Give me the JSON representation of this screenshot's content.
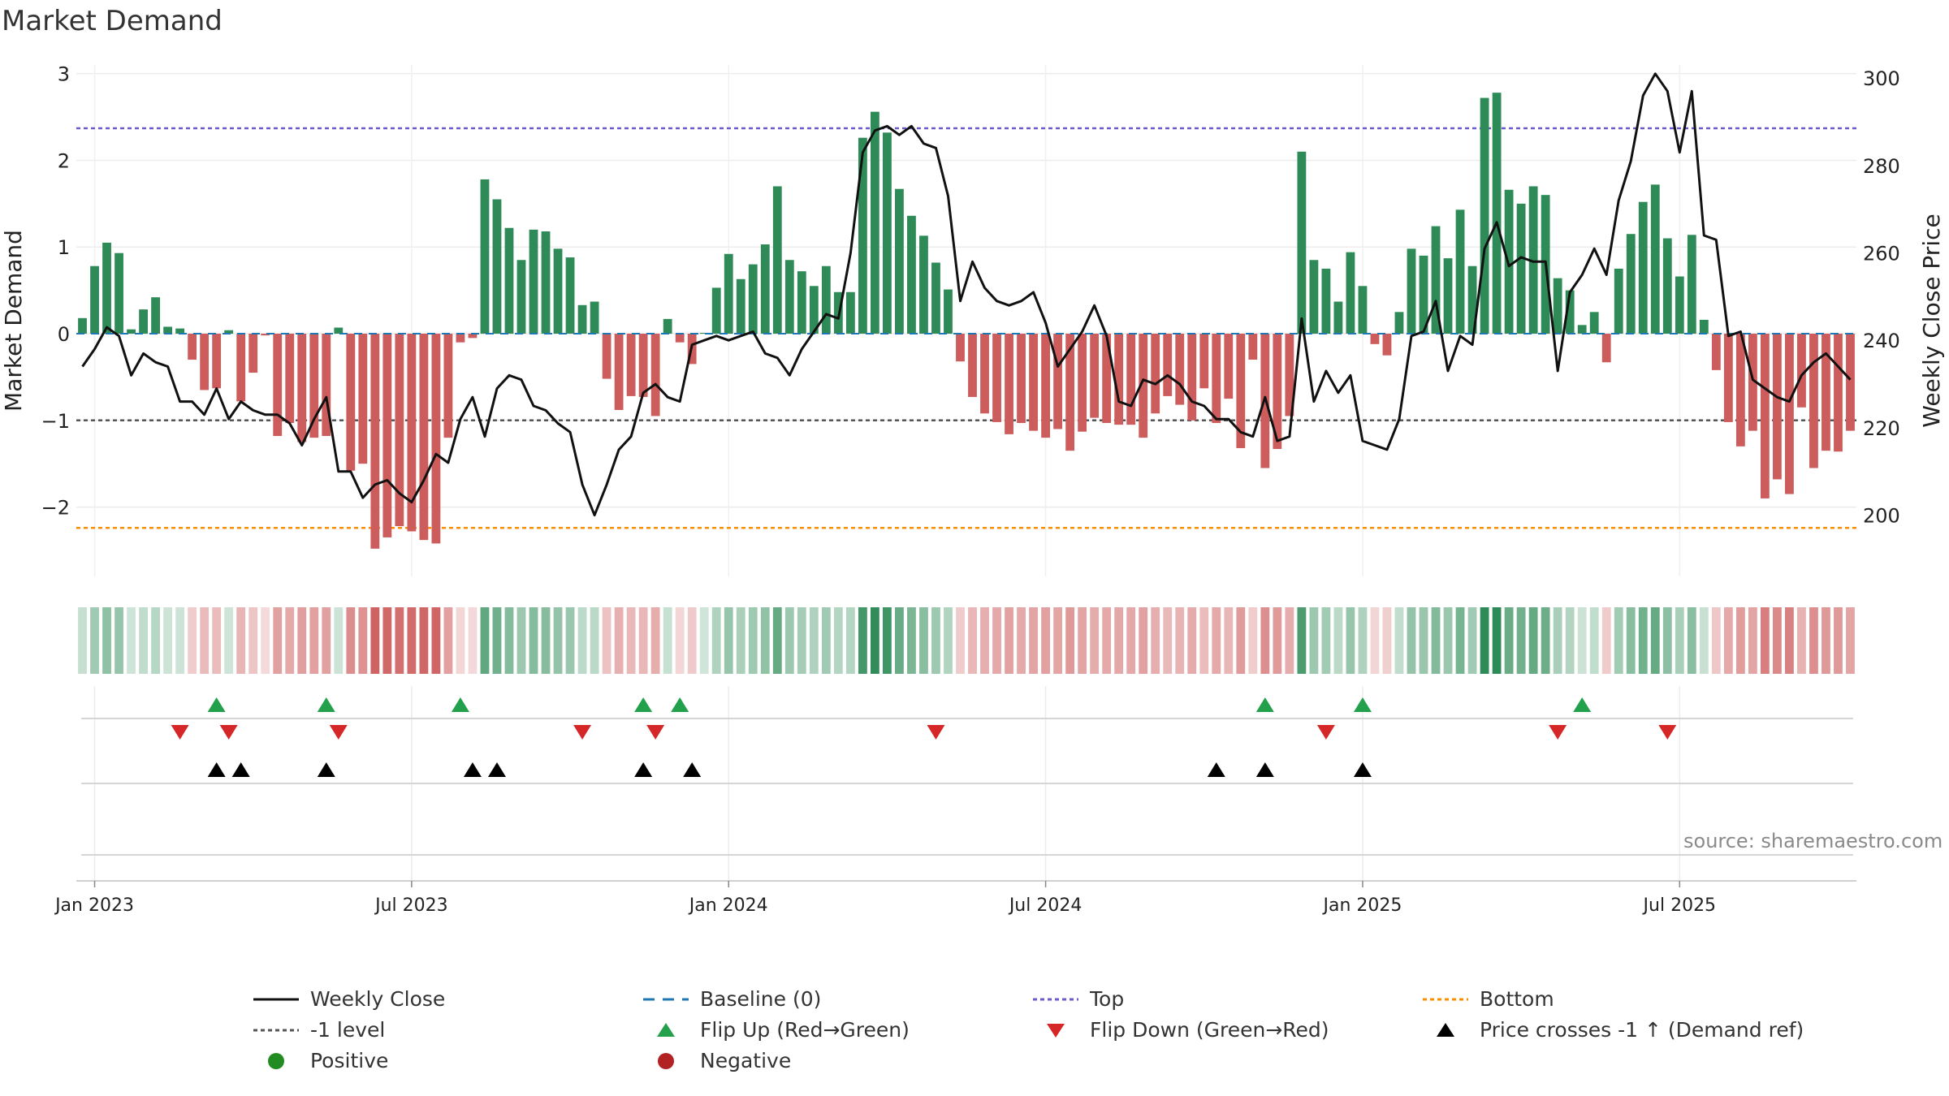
{
  "title": "Market Demand",
  "source": "source: sharemaestro.com",
  "colors": {
    "positive": "#2e8b57",
    "negative": "#cd5c5c",
    "price": "#111111",
    "baseline": "#1f77b4",
    "top": "#6a5acd",
    "level": "#555555",
    "bottom": "#ff8c00",
    "flip_up": "#22a04b",
    "flip_down": "#d62728",
    "cross": "#000000",
    "pos_dot": "#228b22",
    "neg_dot": "#b22222"
  },
  "chart_data": {
    "type": "bar",
    "title": "Market Demand",
    "ylabel": "Market Demand",
    "y2label": "Weekly Close Price",
    "ylim": [
      -2.8,
      3.1
    ],
    "y2lim": [
      186,
      303
    ],
    "yticks": [
      3,
      2,
      1,
      0,
      -1,
      -2
    ],
    "y2ticks": [
      300,
      280,
      260,
      240,
      220,
      200
    ],
    "xticks": [
      {
        "label": "Jan 2023",
        "week": 1
      },
      {
        "label": "Jul 2023",
        "week": 27
      },
      {
        "label": "Jan 2024",
        "week": 53
      },
      {
        "label": "Jul 2024",
        "week": 79
      },
      {
        "label": "Jan 2025",
        "week": 105
      },
      {
        "label": "Jul 2025",
        "week": 131
      }
    ],
    "reference_lines": {
      "top": 2.37,
      "level": -1.0,
      "bottom": -2.24,
      "baseline": 0
    },
    "demand": [
      0.18,
      0.78,
      1.05,
      0.93,
      0.05,
      0.28,
      0.42,
      0.08,
      0.06,
      -0.3,
      -0.65,
      -0.63,
      0.04,
      -0.78,
      -0.45,
      -0.02,
      -1.18,
      -1.03,
      -1.25,
      -1.2,
      -1.18,
      0.07,
      -1.58,
      -1.5,
      -2.48,
      -2.35,
      -2.22,
      -2.28,
      -2.38,
      -2.42,
      -1.2,
      -0.1,
      -0.05,
      1.78,
      1.55,
      1.22,
      0.85,
      1.2,
      1.18,
      0.98,
      0.88,
      0.33,
      0.37,
      -0.52,
      -0.88,
      -0.72,
      -0.73,
      -0.95,
      0.17,
      -0.1,
      -0.35,
      0.01,
      0.53,
      0.92,
      0.63,
      0.8,
      1.03,
      1.7,
      0.85,
      0.72,
      0.55,
      0.78,
      0.48,
      0.48,
      2.26,
      2.56,
      2.32,
      1.67,
      1.36,
      1.13,
      0.82,
      0.51,
      -0.32,
      -0.73,
      -0.92,
      -1.02,
      -1.16,
      -1.03,
      -1.12,
      -1.2,
      -1.1,
      -1.35,
      -1.13,
      -0.97,
      -1.03,
      -1.05,
      -1.05,
      -1.2,
      -0.92,
      -0.72,
      -0.82,
      -1.0,
      -0.63,
      -1.03,
      -0.75,
      -1.32,
      -0.3,
      -1.55,
      -1.33,
      -0.95,
      2.1,
      0.85,
      0.75,
      0.37,
      0.94,
      0.55,
      -0.12,
      -0.25,
      0.25,
      0.98,
      0.9,
      1.24,
      0.87,
      1.43,
      0.78,
      2.72,
      2.78,
      1.66,
      1.5,
      1.7,
      1.6,
      0.64,
      0.5,
      0.1,
      0.25,
      -0.33,
      0.75,
      1.15,
      1.52,
      1.72,
      1.1,
      0.66,
      1.14,
      0.16,
      -0.42,
      -1.02,
      -1.3,
      -1.12,
      -1.9,
      -1.68,
      -1.85,
      -0.85,
      -1.55,
      -1.35,
      -1.36,
      -1.12
    ],
    "weekly_close": [
      234,
      238,
      243,
      241,
      232,
      237,
      235,
      234,
      226,
      226,
      223,
      229,
      222,
      226,
      224,
      223,
      223,
      221,
      216,
      222,
      227,
      210,
      210,
      204,
      207,
      208,
      205,
      203,
      208,
      214,
      212,
      222,
      227,
      218,
      229,
      232,
      231,
      225,
      224,
      221,
      219,
      207,
      200,
      207,
      215,
      218,
      228,
      230,
      227,
      226,
      239,
      240,
      241,
      240,
      241,
      242,
      237,
      236,
      232,
      238,
      242,
      246,
      245,
      260,
      283,
      288,
      289,
      287,
      289,
      285,
      284,
      273,
      249,
      258,
      252,
      249,
      248,
      249,
      251,
      244,
      234,
      238,
      242,
      248,
      241,
      226,
      225,
      231,
      230,
      232,
      230,
      226,
      225,
      222,
      222,
      219,
      218,
      227,
      217,
      218,
      245,
      226,
      233,
      228,
      232,
      217,
      216,
      215,
      222,
      241,
      242,
      249,
      233,
      241,
      239,
      261,
      267,
      257,
      259,
      258,
      258,
      233,
      251,
      255,
      261,
      255,
      272,
      281,
      296,
      301,
      297,
      283,
      297,
      264,
      263,
      241,
      242,
      231,
      229,
      227,
      226,
      232,
      235,
      237,
      234,
      231
    ],
    "flip_up_weeks": [
      11,
      20,
      31,
      46,
      49,
      97,
      105,
      123
    ],
    "flip_down_weeks": [
      8,
      12,
      21,
      41,
      47,
      70,
      102,
      121,
      130
    ],
    "price_cross_weeks": [
      11,
      13,
      20,
      32,
      34,
      46,
      50,
      93,
      97,
      105
    ]
  },
  "legend": [
    {
      "label": "Weekly Close",
      "icon": "solid-line",
      "color": "#111111"
    },
    {
      "label": "Baseline (0)",
      "icon": "dashed-line",
      "color": "#1f77b4"
    },
    {
      "label": "Top",
      "icon": "dotted-line",
      "color": "#6a5acd"
    },
    {
      "label": "Bottom",
      "icon": "dotted-line",
      "color": "#ff8c00"
    },
    {
      "label": "-1 level",
      "icon": "dotted-line",
      "color": "#555555"
    },
    {
      "label": "Flip Up (Red→Green)",
      "icon": "triangle-up",
      "color": "#22a04b"
    },
    {
      "label": "Flip Down (Green→Red)",
      "icon": "triangle-down",
      "color": "#d62728"
    },
    {
      "label": "Price crosses -1 ↑ (Demand ref)",
      "icon": "triangle-up",
      "color": "#000000"
    },
    {
      "label": "Positive",
      "icon": "dot",
      "color": "#228b22"
    },
    {
      "label": "Negative",
      "icon": "dot",
      "color": "#b22222"
    }
  ]
}
